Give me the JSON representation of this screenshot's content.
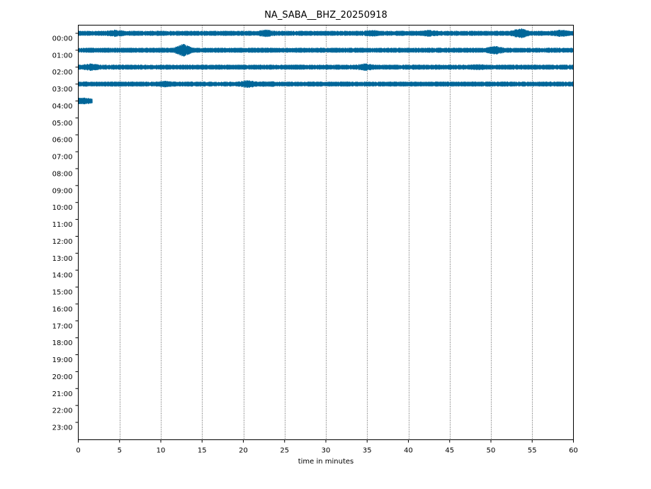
{
  "chart_data": {
    "type": "line",
    "title": "NA_SABA__BHZ_20250918",
    "xlabel": "time in minutes",
    "ylabel": "",
    "xlim": [
      0,
      60
    ],
    "x_ticks": [
      0,
      5,
      10,
      15,
      20,
      25,
      30,
      35,
      40,
      45,
      50,
      55,
      60
    ],
    "y_categories": [
      "00:00",
      "01:00",
      "02:00",
      "03:00",
      "04:00",
      "05:00",
      "06:00",
      "07:00",
      "08:00",
      "09:00",
      "10:00",
      "11:00",
      "12:00",
      "13:00",
      "14:00",
      "15:00",
      "16:00",
      "17:00",
      "18:00",
      "19:00",
      "20:00",
      "21:00",
      "22:00",
      "23:00"
    ],
    "grid": "vertical dotted",
    "trace_color": "#006699",
    "series": [
      {
        "hour": "00:00",
        "x_start": 0,
        "x_end": 60,
        "bursts": [
          {
            "x": 4.5,
            "amp": 1.5
          },
          {
            "x": 22.8,
            "amp": 1.6
          },
          {
            "x": 35.5,
            "amp": 1.4
          },
          {
            "x": 42.5,
            "amp": 1.4
          },
          {
            "x": 53.5,
            "amp": 2.2
          },
          {
            "x": 58.5,
            "amp": 1.5
          }
        ]
      },
      {
        "hour": "01:00",
        "x_start": 0,
        "x_end": 60,
        "bursts": [
          {
            "x": 12.7,
            "amp": 2.6
          },
          {
            "x": 50.5,
            "amp": 1.8
          }
        ]
      },
      {
        "hour": "02:00",
        "x_start": 0,
        "x_end": 60,
        "bursts": [
          {
            "x": 1.5,
            "amp": 1.5
          },
          {
            "x": 34.8,
            "amp": 1.5
          },
          {
            "x": 48.5,
            "amp": 1.2
          }
        ]
      },
      {
        "hour": "03:00",
        "x_start": 0,
        "x_end": 60,
        "bursts": [
          {
            "x": 10.5,
            "amp": 1.3
          },
          {
            "x": 20.5,
            "amp": 1.6
          },
          {
            "x": 23.0,
            "amp": 1.2
          }
        ]
      },
      {
        "hour": "04:00",
        "x_start": 0,
        "x_end": 1.7,
        "bursts": [
          {
            "x": 0.5,
            "amp": 1.4
          }
        ]
      }
    ]
  }
}
